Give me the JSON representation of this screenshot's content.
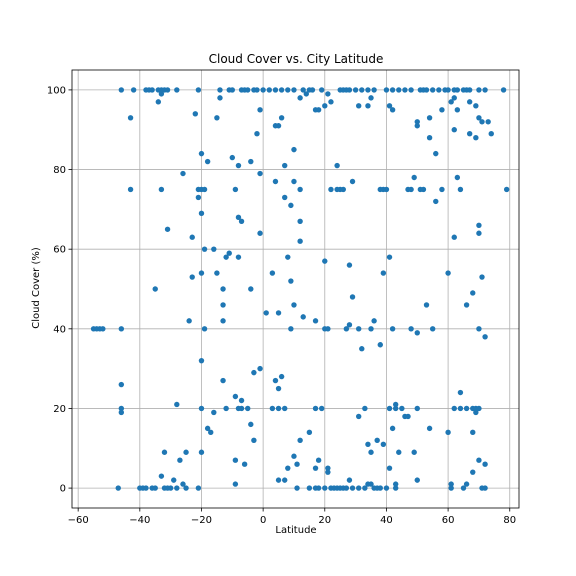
{
  "chart_data": {
    "type": "scatter",
    "title": "Cloud Cover vs. City Latitude",
    "xlabel": "Latitude",
    "ylabel": "Cloud Cover (%)",
    "xlim": [
      -62,
      83
    ],
    "ylim": [
      -5,
      105
    ],
    "xticks": [
      -60,
      -40,
      -20,
      0,
      20,
      40,
      60,
      80
    ],
    "yticks": [
      0,
      20,
      40,
      60,
      80,
      100
    ],
    "grid": true,
    "marker_color": "#1f77b4",
    "points": [
      [
        -55,
        40
      ],
      [
        -54,
        40
      ],
      [
        -53,
        40
      ],
      [
        -52,
        40
      ],
      [
        -46,
        40
      ],
      [
        -46,
        20
      ],
      [
        -46,
        19
      ],
      [
        -46,
        26
      ],
      [
        -47,
        0
      ],
      [
        -46,
        100
      ],
      [
        -43,
        93
      ],
      [
        -43,
        75
      ],
      [
        -42,
        100
      ],
      [
        -40,
        0
      ],
      [
        -39,
        0
      ],
      [
        -38,
        100
      ],
      [
        -38,
        0
      ],
      [
        -37,
        100
      ],
      [
        -36,
        100
      ],
      [
        -36,
        0
      ],
      [
        -35,
        50
      ],
      [
        -35,
        0
      ],
      [
        -34,
        97
      ],
      [
        -34,
        100
      ],
      [
        -33,
        99
      ],
      [
        -33,
        75
      ],
      [
        -33,
        100
      ],
      [
        -33,
        3
      ],
      [
        -32,
        9
      ],
      [
        -32,
        100
      ],
      [
        -32,
        0
      ],
      [
        -31,
        65
      ],
      [
        -31,
        100
      ],
      [
        -31,
        0
      ],
      [
        -30,
        0
      ],
      [
        -29,
        2
      ],
      [
        -28,
        21
      ],
      [
        -28,
        100
      ],
      [
        -28,
        0
      ],
      [
        -27,
        7
      ],
      [
        -26,
        79
      ],
      [
        -26,
        1
      ],
      [
        -25,
        9
      ],
      [
        -25,
        0
      ],
      [
        -24,
        42
      ],
      [
        -23,
        63
      ],
      [
        -23,
        53
      ],
      [
        -22,
        94
      ],
      [
        -21,
        100
      ],
      [
        -21,
        75
      ],
      [
        -21,
        73
      ],
      [
        -21,
        0
      ],
      [
        -20,
        84
      ],
      [
        -20,
        69
      ],
      [
        -20,
        54
      ],
      [
        -20,
        32
      ],
      [
        -20,
        20
      ],
      [
        -20,
        9
      ],
      [
        -20,
        75
      ],
      [
        -19,
        40
      ],
      [
        -19,
        75
      ],
      [
        -19,
        60
      ],
      [
        -18,
        82
      ],
      [
        -18,
        15
      ],
      [
        -17,
        14
      ],
      [
        -16,
        60
      ],
      [
        -16,
        19
      ],
      [
        -15,
        93
      ],
      [
        -15,
        54
      ],
      [
        -14,
        98
      ],
      [
        -14,
        100
      ],
      [
        -13,
        46
      ],
      [
        -13,
        27
      ],
      [
        -13,
        50
      ],
      [
        -13,
        42
      ],
      [
        -12,
        58
      ],
      [
        -12,
        20
      ],
      [
        -11,
        59
      ],
      [
        -11,
        100
      ],
      [
        -10,
        83
      ],
      [
        -10,
        100
      ],
      [
        -9,
        75
      ],
      [
        -9,
        23
      ],
      [
        -9,
        7
      ],
      [
        -9,
        1
      ],
      [
        -8,
        81
      ],
      [
        -8,
        68
      ],
      [
        -8,
        20
      ],
      [
        -8,
        58
      ],
      [
        -7,
        100
      ],
      [
        -7,
        67
      ],
      [
        -7,
        22
      ],
      [
        -7,
        20
      ],
      [
        -6,
        100
      ],
      [
        -6,
        6
      ],
      [
        -5,
        100
      ],
      [
        -5,
        20
      ],
      [
        -4,
        82
      ],
      [
        -4,
        50
      ],
      [
        -4,
        16
      ],
      [
        -3,
        29
      ],
      [
        -3,
        12
      ],
      [
        -3,
        100
      ],
      [
        -2,
        89
      ],
      [
        -2,
        100
      ],
      [
        -1,
        95
      ],
      [
        -1,
        79
      ],
      [
        -1,
        64
      ],
      [
        -1,
        30
      ],
      [
        0,
        100
      ],
      [
        1,
        44
      ],
      [
        2,
        100
      ],
      [
        3,
        54
      ],
      [
        3,
        20
      ],
      [
        4,
        100
      ],
      [
        4,
        91
      ],
      [
        4,
        77
      ],
      [
        4,
        27
      ],
      [
        5,
        91
      ],
      [
        5,
        25
      ],
      [
        5,
        20
      ],
      [
        5,
        2
      ],
      [
        5,
        44
      ],
      [
        6,
        93
      ],
      [
        6,
        28
      ],
      [
        6,
        100
      ],
      [
        7,
        81
      ],
      [
        7,
        73
      ],
      [
        7,
        20
      ],
      [
        7,
        2
      ],
      [
        8,
        58
      ],
      [
        8,
        5
      ],
      [
        8,
        100
      ],
      [
        9,
        71
      ],
      [
        9,
        40
      ],
      [
        9,
        52
      ],
      [
        10,
        85
      ],
      [
        10,
        77
      ],
      [
        10,
        46
      ],
      [
        10,
        8
      ],
      [
        10,
        100
      ],
      [
        11,
        6
      ],
      [
        11,
        0
      ],
      [
        12,
        75
      ],
      [
        12,
        67
      ],
      [
        12,
        62
      ],
      [
        12,
        12
      ],
      [
        12,
        98
      ],
      [
        13,
        43
      ],
      [
        13,
        100
      ],
      [
        14,
        99
      ],
      [
        15,
        100
      ],
      [
        15,
        14
      ],
      [
        15,
        0
      ],
      [
        16,
        100
      ],
      [
        17,
        95
      ],
      [
        17,
        42
      ],
      [
        17,
        20
      ],
      [
        17,
        5
      ],
      [
        17,
        0
      ],
      [
        18,
        95
      ],
      [
        18,
        7
      ],
      [
        18,
        0
      ],
      [
        19,
        100
      ],
      [
        19,
        20
      ],
      [
        20,
        57
      ],
      [
        20,
        40
      ],
      [
        20,
        96
      ],
      [
        20,
        0
      ],
      [
        21,
        99
      ],
      [
        21,
        40
      ],
      [
        21,
        5
      ],
      [
        21,
        4
      ],
      [
        22,
        97
      ],
      [
        22,
        75
      ],
      [
        22,
        0
      ],
      [
        23,
        0
      ],
      [
        24,
        81
      ],
      [
        24,
        75
      ],
      [
        24,
        0
      ],
      [
        25,
        75
      ],
      [
        25,
        100
      ],
      [
        25,
        0
      ],
      [
        26,
        100
      ],
      [
        26,
        75
      ],
      [
        26,
        0
      ],
      [
        27,
        100
      ],
      [
        27,
        40
      ],
      [
        27,
        0
      ],
      [
        28,
        56
      ],
      [
        28,
        41
      ],
      [
        28,
        2
      ],
      [
        28,
        100
      ],
      [
        29,
        77
      ],
      [
        29,
        48
      ],
      [
        29,
        0
      ],
      [
        30,
        100
      ],
      [
        31,
        96
      ],
      [
        31,
        40
      ],
      [
        31,
        18
      ],
      [
        31,
        0
      ],
      [
        32,
        100
      ],
      [
        32,
        35
      ],
      [
        33,
        20
      ],
      [
        33,
        0
      ],
      [
        34,
        96
      ],
      [
        34,
        11
      ],
      [
        34,
        1
      ],
      [
        34,
        100
      ],
      [
        35,
        98
      ],
      [
        35,
        40
      ],
      [
        35,
        9
      ],
      [
        35,
        1
      ],
      [
        36,
        100
      ],
      [
        36,
        42
      ],
      [
        36,
        0
      ],
      [
        37,
        12
      ],
      [
        37,
        0
      ],
      [
        38,
        75
      ],
      [
        38,
        36
      ],
      [
        38,
        0
      ],
      [
        39,
        75
      ],
      [
        39,
        11
      ],
      [
        39,
        54
      ],
      [
        40,
        75
      ],
      [
        40,
        100
      ],
      [
        40,
        0
      ],
      [
        41,
        96
      ],
      [
        41,
        58
      ],
      [
        41,
        20
      ],
      [
        41,
        5
      ],
      [
        42,
        100
      ],
      [
        42,
        95
      ],
      [
        42,
        40
      ],
      [
        42,
        15
      ],
      [
        43,
        20
      ],
      [
        43,
        21
      ],
      [
        43,
        0
      ],
      [
        43,
        1
      ],
      [
        44,
        100
      ],
      [
        44,
        9
      ],
      [
        45,
        20
      ],
      [
        46,
        100
      ],
      [
        46,
        18
      ],
      [
        47,
        75
      ],
      [
        47,
        18
      ],
      [
        48,
        100
      ],
      [
        48,
        75
      ],
      [
        48,
        40
      ],
      [
        49,
        78
      ],
      [
        49,
        9
      ],
      [
        50,
        92
      ],
      [
        50,
        91
      ],
      [
        50,
        39
      ],
      [
        50,
        20
      ],
      [
        50,
        2
      ],
      [
        51,
        100
      ],
      [
        51,
        75
      ],
      [
        52,
        100
      ],
      [
        52,
        75
      ],
      [
        53,
        100
      ],
      [
        53,
        46
      ],
      [
        54,
        88
      ],
      [
        54,
        93
      ],
      [
        54,
        15
      ],
      [
        55,
        100
      ],
      [
        55,
        40
      ],
      [
        56,
        72
      ],
      [
        56,
        84
      ],
      [
        57,
        100
      ],
      [
        58,
        75
      ],
      [
        58,
        95
      ],
      [
        59,
        100
      ],
      [
        60,
        100
      ],
      [
        60,
        54
      ],
      [
        60,
        14
      ],
      [
        61,
        97
      ],
      [
        61,
        1
      ],
      [
        61,
        0
      ],
      [
        62,
        100
      ],
      [
        62,
        98
      ],
      [
        62,
        90
      ],
      [
        62,
        63
      ],
      [
        62,
        20
      ],
      [
        63,
        100
      ],
      [
        63,
        95
      ],
      [
        63,
        78
      ],
      [
        64,
        75
      ],
      [
        64,
        24
      ],
      [
        64,
        20
      ],
      [
        65,
        100
      ],
      [
        65,
        0
      ],
      [
        66,
        100
      ],
      [
        66,
        46
      ],
      [
        66,
        20
      ],
      [
        66,
        1
      ],
      [
        67,
        89
      ],
      [
        67,
        97
      ],
      [
        67,
        100
      ],
      [
        68,
        49
      ],
      [
        68,
        14
      ],
      [
        68,
        4
      ],
      [
        68,
        20
      ],
      [
        69,
        96
      ],
      [
        69,
        88
      ],
      [
        69,
        19
      ],
      [
        69,
        20
      ],
      [
        70,
        100
      ],
      [
        70,
        93
      ],
      [
        70,
        66
      ],
      [
        70,
        64
      ],
      [
        70,
        40
      ],
      [
        70,
        7
      ],
      [
        70,
        20
      ],
      [
        71,
        92
      ],
      [
        71,
        53
      ],
      [
        71,
        0
      ],
      [
        72,
        100
      ],
      [
        72,
        38
      ],
      [
        72,
        6
      ],
      [
        72,
        0
      ],
      [
        73,
        92
      ],
      [
        74,
        89
      ],
      [
        78,
        100
      ],
      [
        79,
        75
      ]
    ]
  }
}
